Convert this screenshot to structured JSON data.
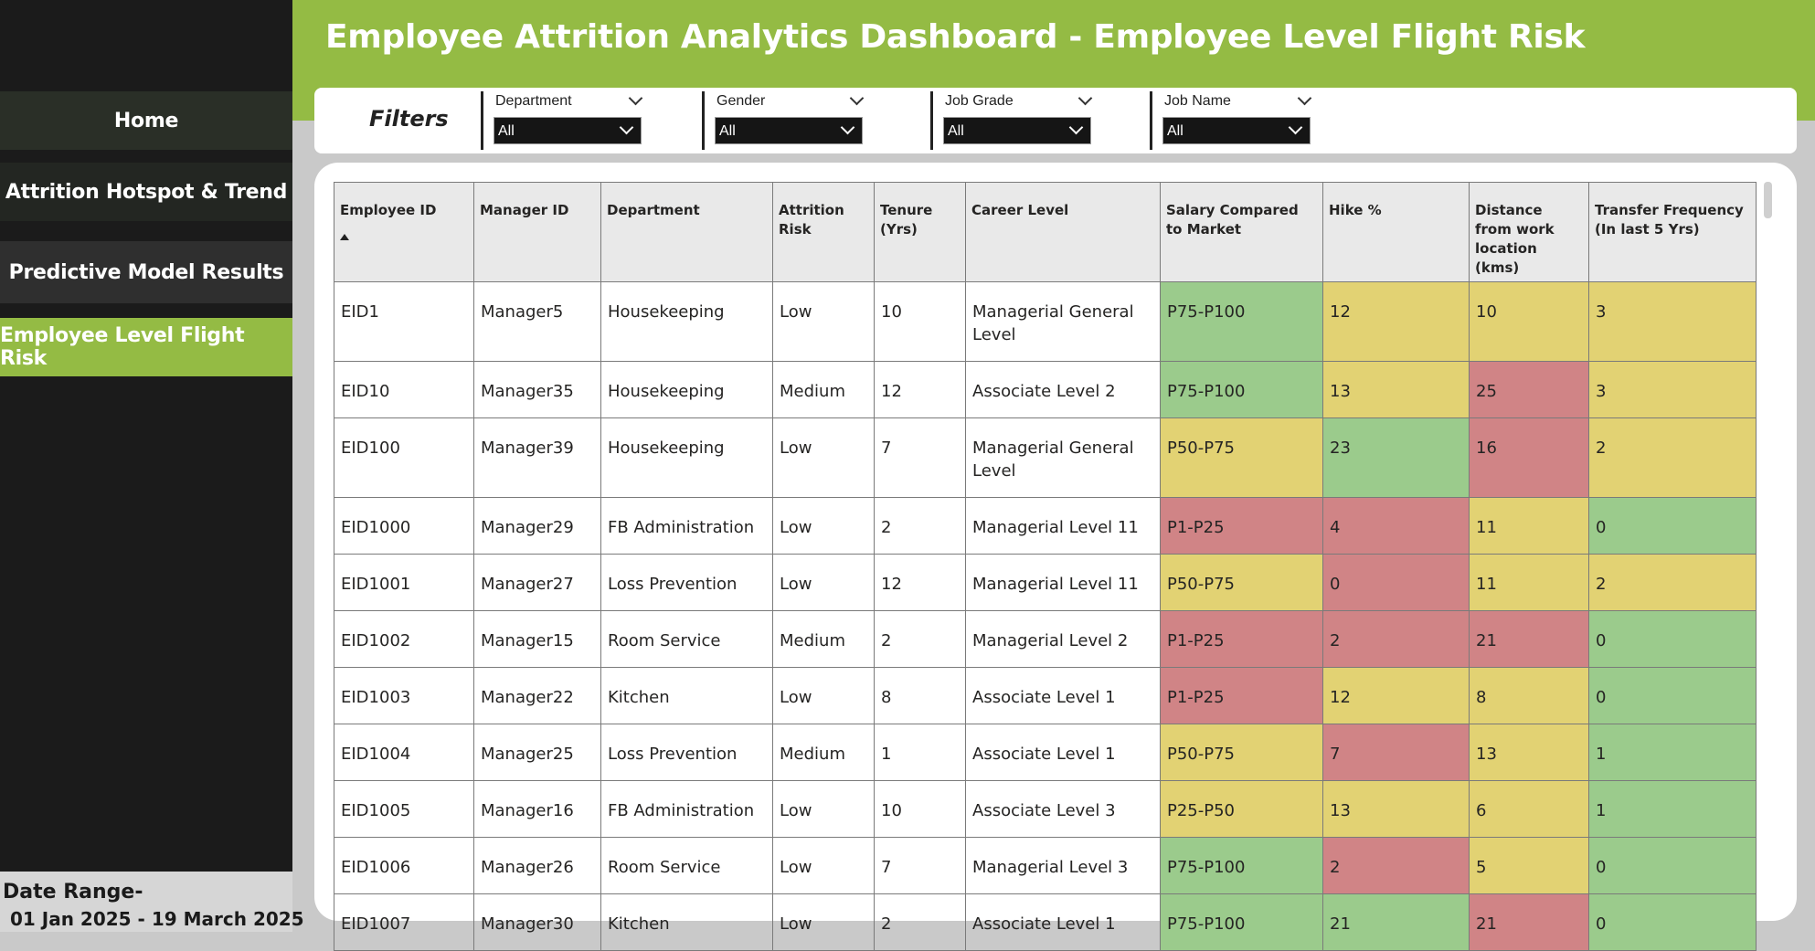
{
  "sidebar": {
    "items": [
      {
        "label": "Home"
      },
      {
        "label": "Attrition Hotspot & Trend"
      },
      {
        "label": "Predictive Model Results"
      },
      {
        "label": "Employee Level Flight Risk"
      }
    ],
    "date_range_label": "Date Range-",
    "date_range_value": "01 Jan 2025 - 19 March 2025"
  },
  "header": {
    "title": "Employee Attrition Analytics Dashboard - Employee Level Flight Risk"
  },
  "filters": {
    "label": "Filters",
    "items": [
      {
        "name": "Department",
        "value": "All"
      },
      {
        "name": "Gender",
        "value": "All"
      },
      {
        "name": "Job Grade",
        "value": "All"
      },
      {
        "name": "Job Name",
        "value": "All"
      }
    ]
  },
  "table": {
    "columns": [
      "Employee ID",
      "Manager ID",
      "Department",
      "Attrition Risk",
      "Tenure (Yrs)",
      "Career Level",
      "Salary Compared to Market",
      "Hike %",
      "Distance from work location (kms)",
      "Transfer Frequency (In last 5 Yrs)"
    ],
    "sorted_column": "Employee ID",
    "sort_direction": "ascending",
    "color_scale": {
      "green": "#9bcb8c",
      "yellow": "#e2d273",
      "red": "#d08486"
    },
    "rows": [
      {
        "cells": [
          "EID1",
          "Manager5",
          "Housekeeping",
          "Low",
          "10",
          "Managerial General Level",
          "P75-P100",
          "12",
          "10",
          "3"
        ],
        "colors": [
          "green",
          "yellow",
          "yellow",
          "yellow"
        ]
      },
      {
        "cells": [
          "EID10",
          "Manager35",
          "Housekeeping",
          "Medium",
          "12",
          "Associate Level 2",
          "P75-P100",
          "13",
          "25",
          "3"
        ],
        "colors": [
          "green",
          "yellow",
          "red",
          "yellow"
        ]
      },
      {
        "cells": [
          "EID100",
          "Manager39",
          "Housekeeping",
          "Low",
          "7",
          "Managerial General Level",
          "P50-P75",
          "23",
          "16",
          "2"
        ],
        "colors": [
          "yellow",
          "green",
          "red",
          "yellow"
        ]
      },
      {
        "cells": [
          "EID1000",
          "Manager29",
          "FB Administration",
          "Low",
          "2",
          "Managerial Level 11",
          "P1-P25",
          "4",
          "11",
          "0"
        ],
        "colors": [
          "red",
          "red",
          "yellow",
          "green"
        ]
      },
      {
        "cells": [
          "EID1001",
          "Manager27",
          "Loss Prevention",
          "Low",
          "12",
          "Managerial Level 11",
          "P50-P75",
          "0",
          "11",
          "2"
        ],
        "colors": [
          "yellow",
          "red",
          "yellow",
          "yellow"
        ]
      },
      {
        "cells": [
          "EID1002",
          "Manager15",
          "Room Service",
          "Medium",
          "2",
          "Managerial Level 2",
          "P1-P25",
          "2",
          "21",
          "0"
        ],
        "colors": [
          "red",
          "red",
          "red",
          "green"
        ]
      },
      {
        "cells": [
          "EID1003",
          "Manager22",
          "Kitchen",
          "Low",
          "8",
          "Associate Level 1",
          "P1-P25",
          "12",
          "8",
          "0"
        ],
        "colors": [
          "red",
          "yellow",
          "yellow",
          "green"
        ]
      },
      {
        "cells": [
          "EID1004",
          "Manager25",
          "Loss Prevention",
          "Medium",
          "1",
          "Associate Level 1",
          "P50-P75",
          "7",
          "13",
          "1"
        ],
        "colors": [
          "yellow",
          "red",
          "yellow",
          "green"
        ]
      },
      {
        "cells": [
          "EID1005",
          "Manager16",
          "FB Administration",
          "Low",
          "10",
          "Associate Level 3",
          "P25-P50",
          "13",
          "6",
          "1"
        ],
        "colors": [
          "yellow",
          "yellow",
          "yellow",
          "green"
        ]
      },
      {
        "cells": [
          "EID1006",
          "Manager26",
          "Room Service",
          "Low",
          "7",
          "Managerial Level 3",
          "P75-P100",
          "2",
          "5",
          "0"
        ],
        "colors": [
          "green",
          "red",
          "yellow",
          "green"
        ]
      },
      {
        "cells": [
          "EID1007",
          "Manager30",
          "Kitchen",
          "Low",
          "2",
          "Associate Level 1",
          "P75-P100",
          "21",
          "21",
          "0"
        ],
        "colors": [
          "green",
          "green",
          "red",
          "green"
        ]
      }
    ]
  }
}
